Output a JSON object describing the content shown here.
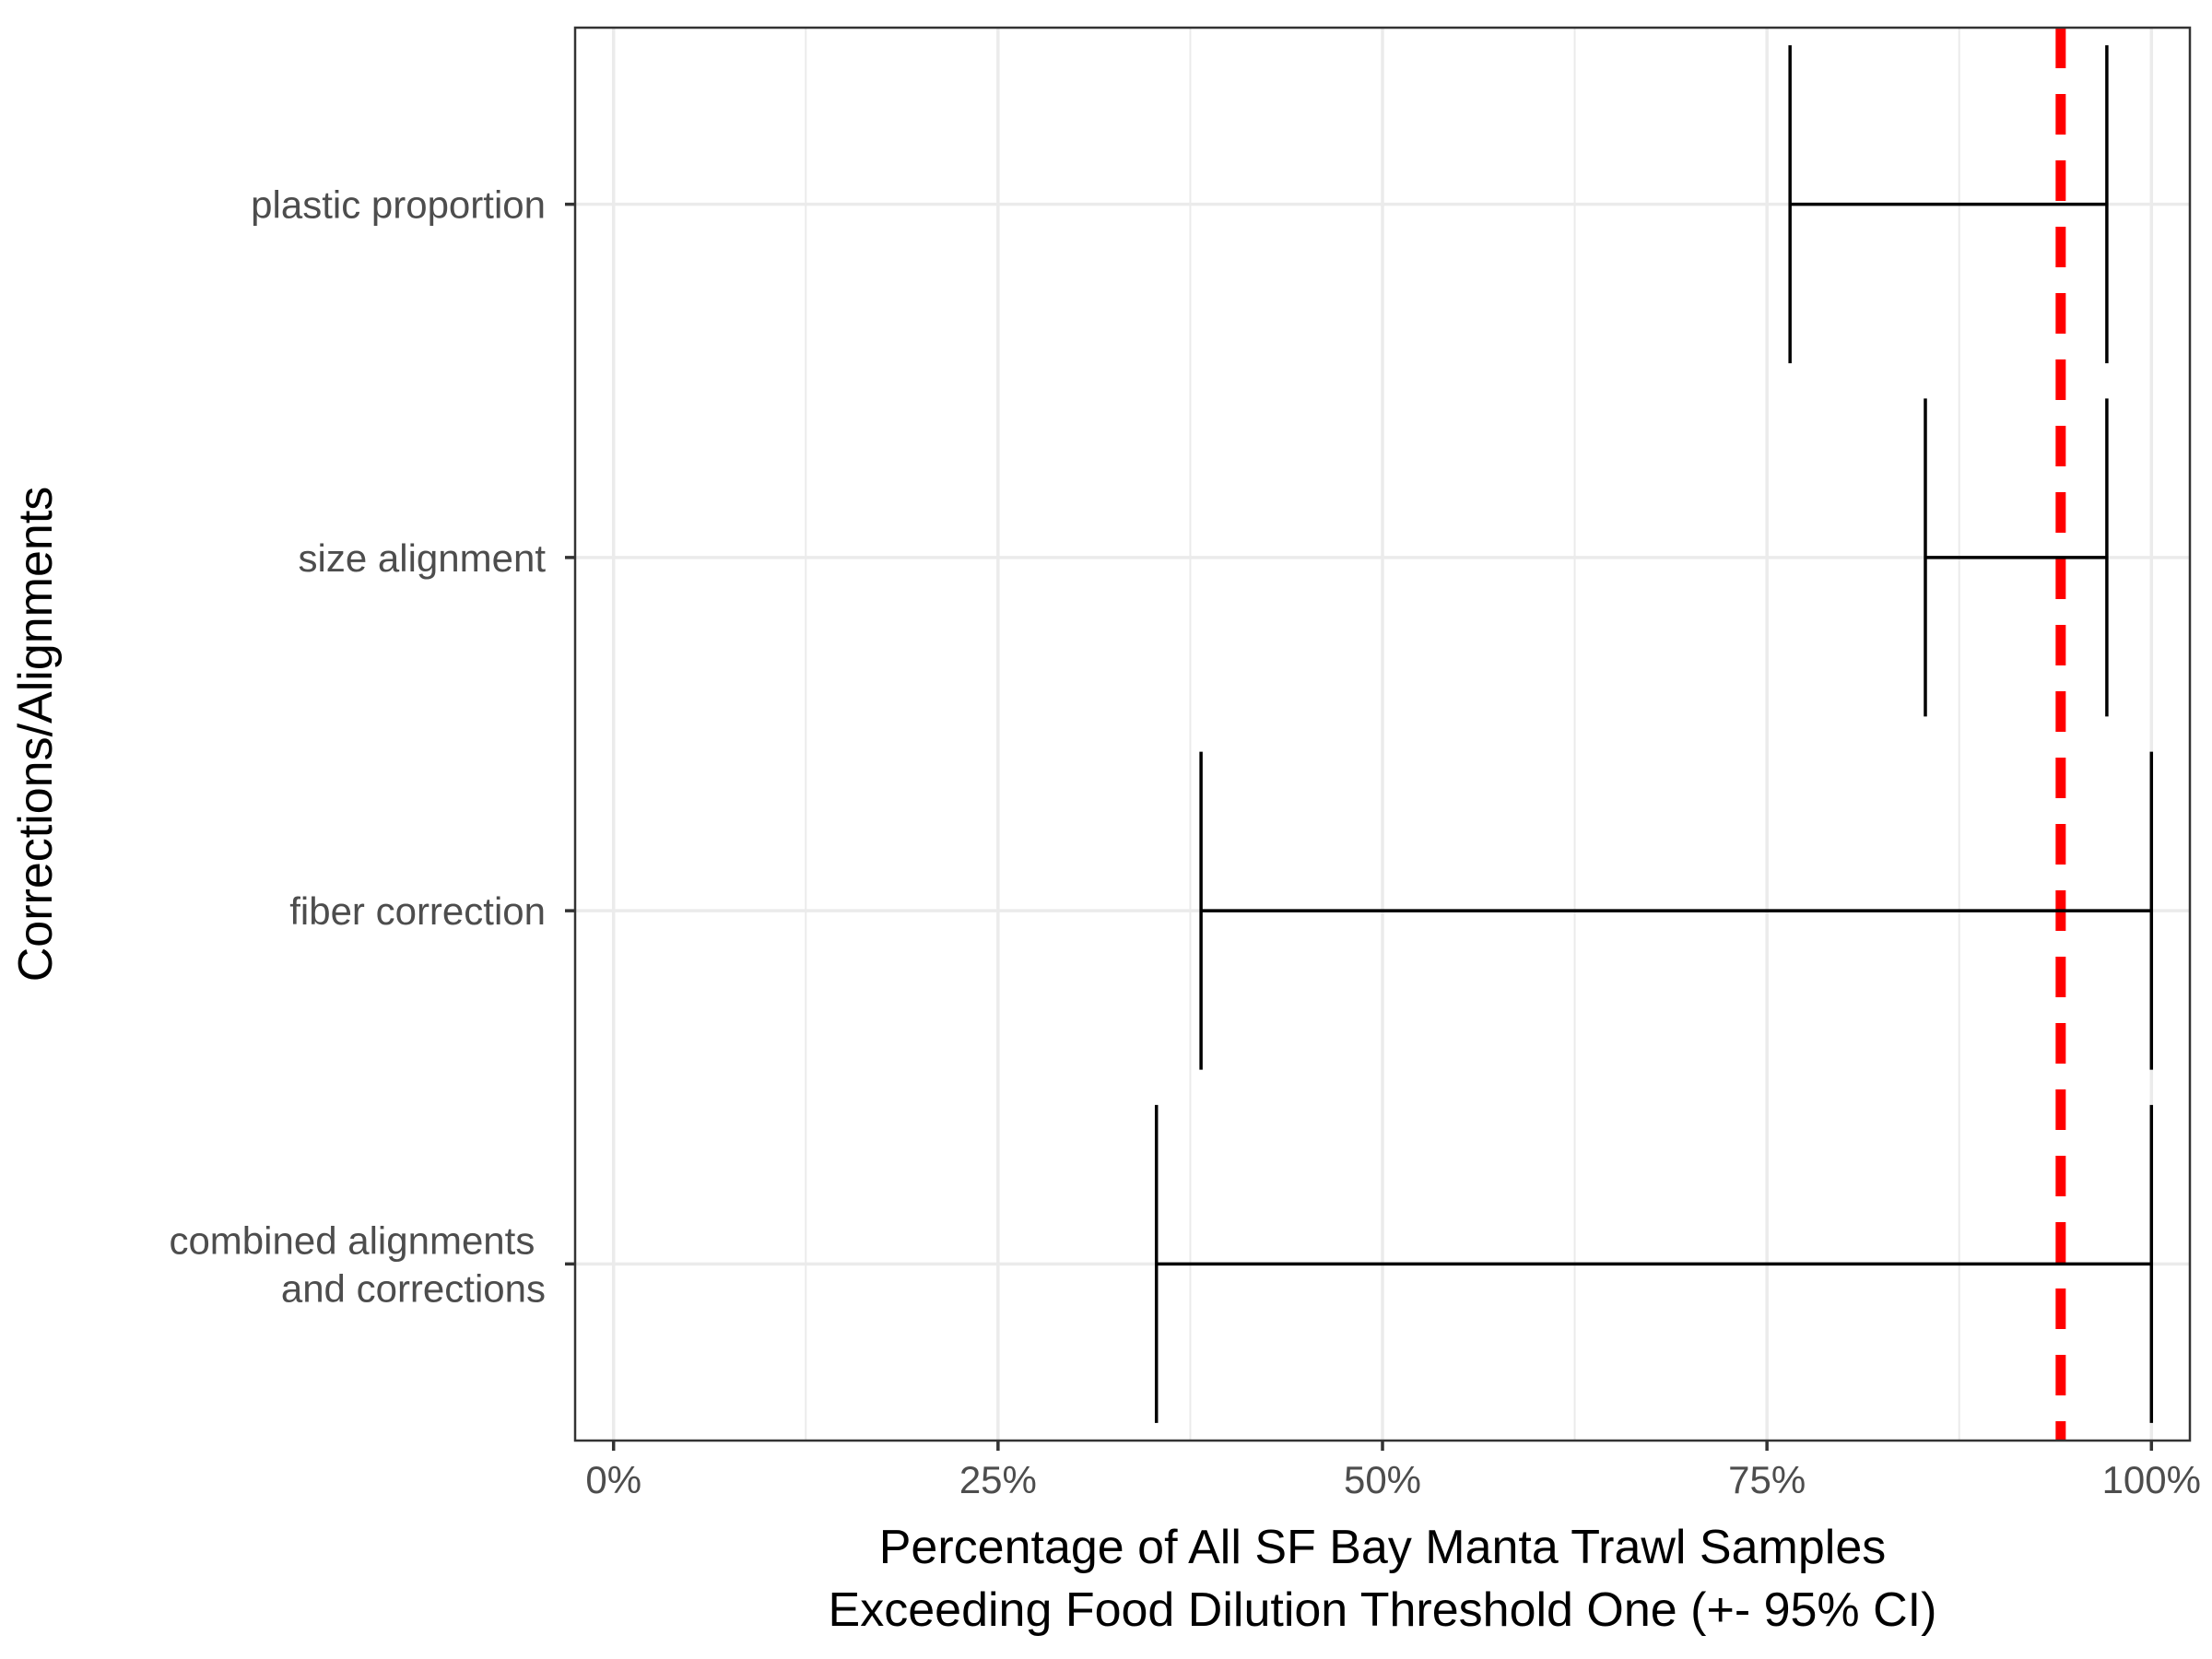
{
  "chart_data": {
    "type": "errorbar",
    "orientation": "horizontal",
    "categories": [
      "plastic proportion",
      "size alignment",
      "fiber correction",
      "combined alignments and corrections"
    ],
    "category_label_lines": [
      [
        "plastic proportion"
      ],
      [
        "size alignment"
      ],
      [
        "fiber correction"
      ],
      [
        "combined alignments ",
        "and corrections"
      ]
    ],
    "intervals": [
      {
        "category": "plastic proportion",
        "lower": 76.5,
        "upper": 97.1
      },
      {
        "category": "size alignment",
        "lower": 85.3,
        "upper": 97.1
      },
      {
        "category": "fiber correction",
        "lower": 38.2,
        "upper": 100
      },
      {
        "category": "combined alignments and corrections",
        "lower": 35.3,
        "upper": 100
      }
    ],
    "reference_line": {
      "x": 94.1,
      "color": "#ff0000",
      "style": "dashed"
    },
    "xlim": [
      -2.5,
      102.5
    ],
    "x_ticks": [
      0,
      25,
      50,
      75,
      100
    ],
    "x_tick_labels": [
      "0%",
      "25%",
      "50%",
      "75%",
      "100%"
    ],
    "xlabel_lines": [
      "Percentage of All SF Bay Manta Trawl Samples",
      "Exceeding Food Dilution Threshold One (+- 95% CI)"
    ],
    "ylabel": "Corrections/Alignments",
    "grid": true,
    "colors": {
      "interval": "#000000",
      "grid": "#ebebeb",
      "panel_border": "#333333",
      "reference": "#ff0000"
    }
  }
}
